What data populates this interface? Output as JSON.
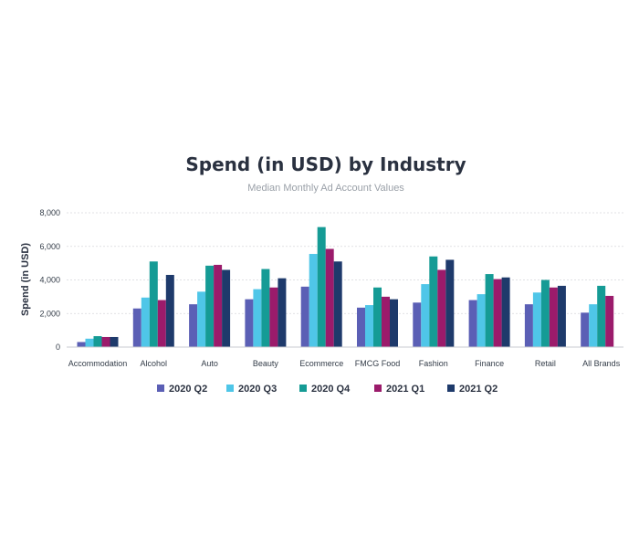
{
  "chart_data": {
    "type": "bar",
    "title": "Spend (in USD) by Industry",
    "subtitle": "Median Monthly Ad Account Values",
    "xlabel": "",
    "ylabel": "Spend (in USD)",
    "ylim": [
      0,
      8000
    ],
    "yticks": [
      "0",
      "2,000",
      "4,000",
      "6,000",
      "8,000"
    ],
    "grid": true,
    "legend_position": "bottom",
    "categories": [
      "Accommodation",
      "Alcohol",
      "Auto",
      "Beauty",
      "Ecommerce",
      "FMCG Food",
      "Fashion",
      "Finance",
      "Retail",
      "All Brands"
    ],
    "series": [
      {
        "name": "2020 Q2",
        "color": "#5b5fb5",
        "values": [
          300,
          2300,
          2550,
          2850,
          3600,
          2350,
          2650,
          2800,
          2550,
          2050
        ]
      },
      {
        "name": "2020 Q3",
        "color": "#4fc6e8",
        "values": [
          500,
          2950,
          3300,
          3450,
          5550,
          2500,
          3750,
          3150,
          3250,
          2550
        ]
      },
      {
        "name": "2020 Q4",
        "color": "#159b95",
        "values": [
          650,
          5100,
          4850,
          4650,
          7150,
          3550,
          5400,
          4350,
          4000,
          3650
        ]
      },
      {
        "name": "2021 Q1",
        "color": "#9b1b6b",
        "values": [
          600,
          2800,
          4900,
          3550,
          5850,
          3000,
          4600,
          4050,
          3550,
          3050
        ]
      },
      {
        "name": "2021 Q2",
        "color": "#1e3a6b",
        "values": [
          600,
          4300,
          4600,
          4100,
          5100,
          2850,
          5200,
          4150,
          3650,
          0
        ]
      }
    ]
  }
}
